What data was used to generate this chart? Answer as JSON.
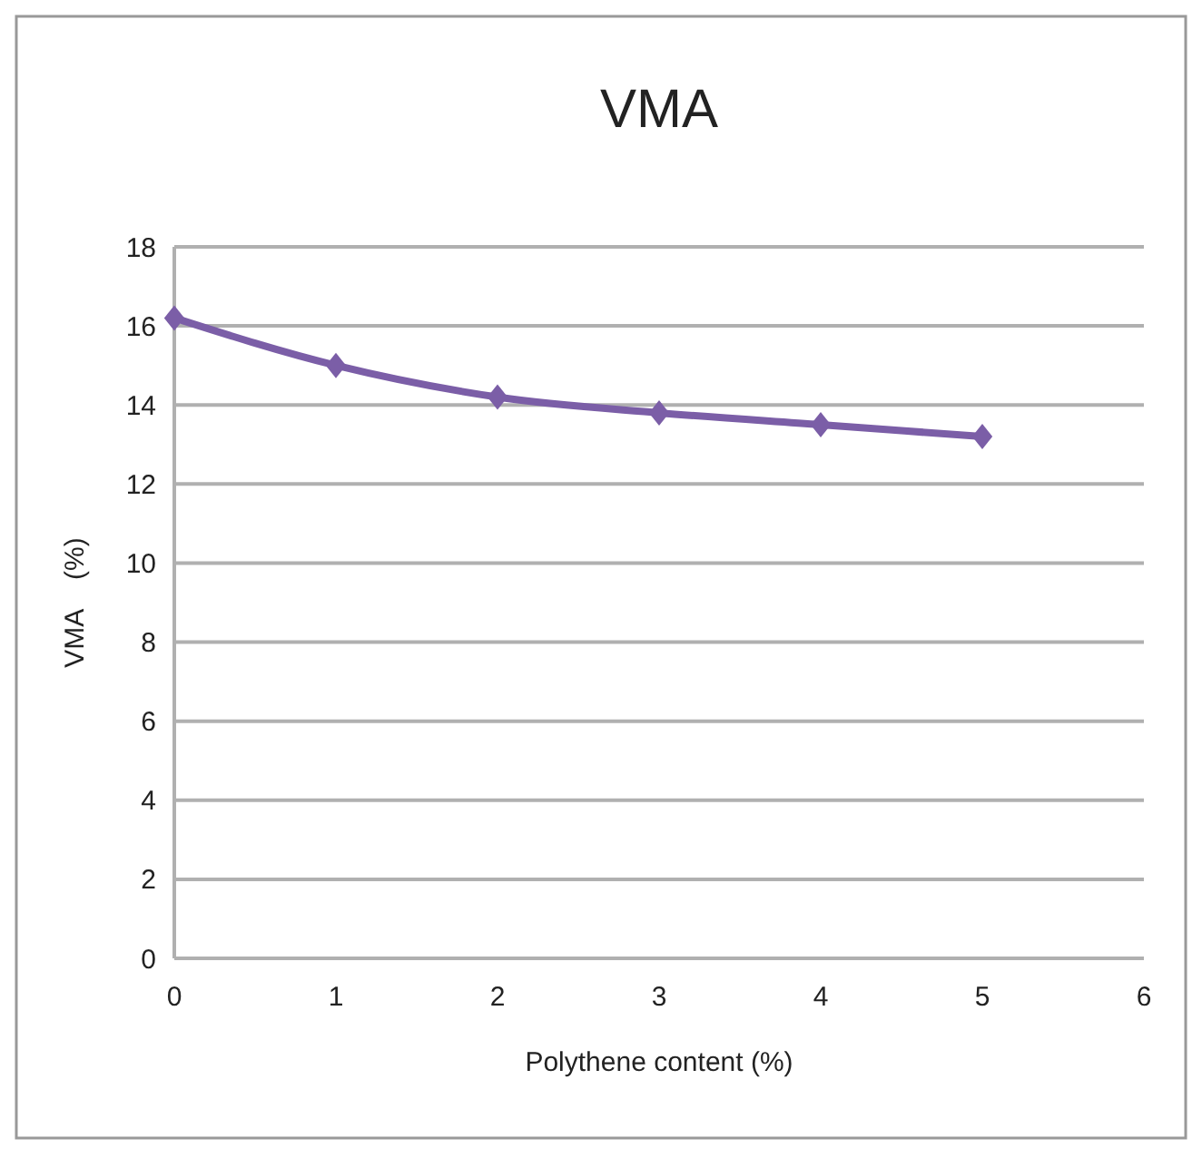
{
  "chart_data": {
    "type": "line",
    "title": "VMA",
    "xlabel": "Polythene content (%)",
    "ylabel": "VMA    (%)",
    "x": [
      0,
      1,
      2,
      3,
      4,
      5
    ],
    "series": [
      {
        "color": "#7b5ea7",
        "values": [
          16.2,
          15.0,
          14.2,
          13.8,
          13.5,
          13.2
        ]
      }
    ],
    "xlim": [
      0,
      6
    ],
    "xticks": [
      0,
      1,
      2,
      3,
      4,
      5,
      6
    ],
    "ylim": [
      0,
      18
    ],
    "yticks": [
      0,
      2,
      4,
      6,
      8,
      10,
      12,
      14,
      16,
      18
    ],
    "grid": "y",
    "marker": "diamond",
    "line_style": "solid"
  }
}
